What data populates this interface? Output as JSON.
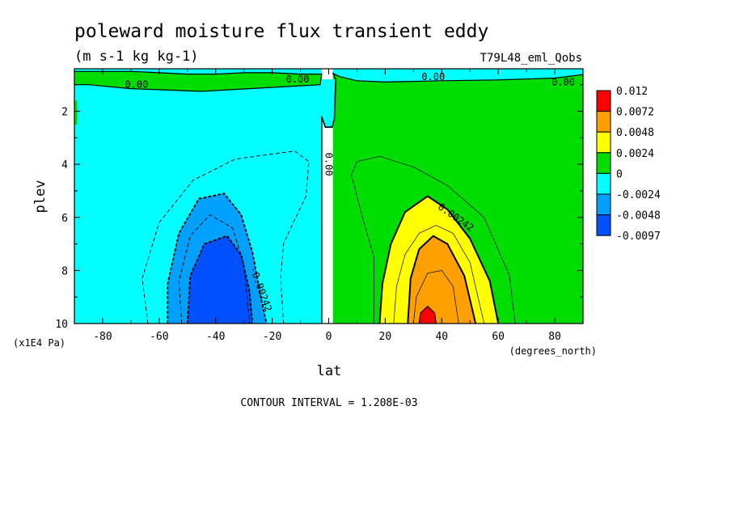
{
  "chart_data": {
    "type": "heatmap",
    "title": "poleward moisture flux transient eddy",
    "subtitle": "(m s-1 kg kg-1)",
    "dataset_label": "T79L48_eml_Qobs",
    "xlabel": "lat",
    "xunits": "(degrees_north)",
    "ylabel": "plev",
    "yunits": "(x1E4 Pa)",
    "xlim": [
      -90,
      90
    ],
    "ylim": [
      0.4,
      10
    ],
    "y_inverted": true,
    "x_ticks": [
      -80,
      -60,
      -40,
      -20,
      0,
      20,
      40,
      60,
      80
    ],
    "y_ticks": [
      2,
      4,
      6,
      8,
      10
    ],
    "x_tick_labels": [
      "-80",
      "-60",
      "-40",
      "-20",
      "0",
      "20",
      "40",
      "60",
      "80"
    ],
    "y_tick_labels": [
      "2",
      "4",
      "6",
      "8",
      "10"
    ],
    "contour_labels": [
      {
        "text": "0.00",
        "lat": -68,
        "plev": 1.0
      },
      {
        "text": "0.00",
        "lat": -11,
        "plev": 0.8
      },
      {
        "text": "0.00",
        "lat": 37,
        "plev": 0.7
      },
      {
        "text": "0.00",
        "lat": 83,
        "plev": 0.9
      },
      {
        "text": "0.00",
        "lat": 0,
        "plev": 4.0
      },
      {
        "text": "0.00242",
        "lat": 45,
        "plev": 6.0
      },
      {
        "text": "-0.00242",
        "lat": -24,
        "plev": 8.7
      }
    ],
    "colorbar": {
      "levels": [
        "0.012",
        "0.0072",
        "0.0048",
        "0.0024",
        "0",
        "-0.0024",
        "-0.0048",
        "-0.0097"
      ],
      "colors": [
        "#ff0000",
        "#ffa000",
        "#ffff00",
        "#00dd00",
        "#00ffff",
        "#00a0ff",
        "#0050ff"
      ]
    },
    "contour_interval_label": "CONTOUR INTERVAL = 1.208E-03",
    "regions": [
      {
        "color": "#00ffff",
        "points": [
          [
            -90,
            0.4
          ],
          [
            -2.5,
            0.4
          ],
          [
            -2.5,
            10
          ],
          [
            -90,
            10
          ]
        ]
      },
      {
        "color": "#00dd00",
        "points": [
          [
            1.5,
            0.4
          ],
          [
            90,
            0.4
          ],
          [
            90,
            10
          ],
          [
            1.5,
            10
          ]
        ]
      },
      {
        "color": "#00dd00",
        "points": [
          [
            -90,
            0.5
          ],
          [
            -70,
            0.5
          ],
          [
            -60,
            0.55
          ],
          [
            -50,
            0.6
          ],
          [
            -40,
            0.6
          ],
          [
            -30,
            0.55
          ],
          [
            -20,
            0.55
          ],
          [
            -10,
            0.6
          ],
          [
            -2.5,
            0.6
          ],
          [
            -3,
            1.0
          ],
          [
            -45,
            1.25
          ],
          [
            -70,
            1.15
          ],
          [
            -85,
            1.0
          ],
          [
            -90,
            1.0
          ]
        ]
      },
      {
        "color": "#00dd00",
        "points": [
          [
            -90,
            1.6
          ],
          [
            -89,
            1.6
          ],
          [
            -89,
            2.5
          ],
          [
            -90,
            2.5
          ]
        ]
      },
      {
        "color": "#00ffff",
        "points": [
          [
            1.5,
            0.4
          ],
          [
            90,
            0.4
          ],
          [
            90,
            0.62
          ],
          [
            80,
            0.75
          ],
          [
            60,
            0.82
          ],
          [
            40,
            0.85
          ],
          [
            20,
            0.9
          ],
          [
            10,
            0.85
          ],
          [
            4,
            0.7
          ],
          [
            2,
            0.6
          ],
          [
            1.5,
            0.55
          ]
        ]
      },
      {
        "color": "#00ffff",
        "points": [
          [
            -2.5,
            0.8
          ],
          [
            2.5,
            0.8
          ],
          [
            2,
            2.3
          ],
          [
            1.2,
            2.6
          ],
          [
            -1.2,
            2.6
          ],
          [
            -2.5,
            2.2
          ]
        ]
      },
      {
        "color": "#ffff00",
        "points": [
          [
            18,
            10
          ],
          [
            19,
            8.5
          ],
          [
            22,
            7.0
          ],
          [
            27,
            5.8
          ],
          [
            35,
            5.2
          ],
          [
            42,
            5.7
          ],
          [
            50,
            6.8
          ],
          [
            57,
            8.4
          ],
          [
            60,
            10
          ]
        ]
      },
      {
        "color": "#ffa000",
        "points": [
          [
            28,
            10
          ],
          [
            29,
            8.3
          ],
          [
            32,
            7.2
          ],
          [
            37,
            6.7
          ],
          [
            42,
            7.0
          ],
          [
            48,
            8.2
          ],
          [
            52,
            10
          ]
        ]
      },
      {
        "color": "#ff0000",
        "points": [
          [
            32,
            10
          ],
          [
            32.5,
            9.6
          ],
          [
            35,
            9.35
          ],
          [
            37.5,
            9.6
          ],
          [
            38,
            10
          ]
        ]
      },
      {
        "color": "#00a0ff",
        "points": [
          [
            -57,
            10
          ],
          [
            -57,
            8.5
          ],
          [
            -53,
            6.6
          ],
          [
            -46,
            5.3
          ],
          [
            -37,
            5.1
          ],
          [
            -31,
            5.9
          ],
          [
            -27,
            7.3
          ],
          [
            -24,
            9.0
          ],
          [
            -22,
            10
          ]
        ]
      },
      {
        "color": "#0050ff",
        "points": [
          [
            -50,
            10
          ],
          [
            -49,
            8.2
          ],
          [
            -44,
            7.0
          ],
          [
            -36,
            6.7
          ],
          [
            -31,
            7.4
          ],
          [
            -28,
            8.8
          ],
          [
            -27,
            10
          ]
        ]
      }
    ],
    "contour_lines": [
      {
        "style": "solid",
        "width": 1.6,
        "points": [
          [
            -2.5,
            10
          ],
          [
            -2.5,
            2.2
          ],
          [
            -1.2,
            2.6
          ],
          [
            1.2,
            2.6
          ],
          [
            2,
            2.3
          ],
          [
            2.5,
            0.8
          ],
          [
            1.5,
            0.55
          ]
        ]
      },
      {
        "style": "solid",
        "width": 1.2,
        "points": [
          [
            -90,
            1.0
          ],
          [
            -85,
            1.0
          ],
          [
            -70,
            1.15
          ],
          [
            -45,
            1.25
          ],
          [
            -3,
            1.0
          ],
          [
            -2.5,
            0.6
          ],
          [
            -10,
            0.6
          ],
          [
            -20,
            0.55
          ],
          [
            -30,
            0.55
          ],
          [
            -40,
            0.6
          ],
          [
            -50,
            0.6
          ],
          [
            -60,
            0.55
          ],
          [
            -70,
            0.5
          ],
          [
            -90,
            0.5
          ]
        ]
      },
      {
        "style": "solid",
        "width": 1.2,
        "points": [
          [
            90,
            0.62
          ],
          [
            80,
            0.75
          ],
          [
            60,
            0.82
          ],
          [
            40,
            0.85
          ],
          [
            20,
            0.9
          ],
          [
            10,
            0.85
          ],
          [
            4,
            0.7
          ],
          [
            2,
            0.6
          ]
        ]
      },
      {
        "style": "solid",
        "width": 0.7,
        "points": [
          [
            16,
            10
          ],
          [
            16,
            7.5
          ],
          [
            12,
            6.0
          ],
          [
            8,
            4.4
          ],
          [
            10,
            3.9
          ],
          [
            18,
            3.7
          ],
          [
            30,
            4.1
          ],
          [
            42,
            4.8
          ],
          [
            55,
            6.0
          ],
          [
            64,
            8.2
          ],
          [
            66,
            10
          ]
        ]
      },
      {
        "style": "solid",
        "width": 2.0,
        "points": [
          [
            18,
            10
          ],
          [
            19,
            8.5
          ],
          [
            22,
            7.0
          ],
          [
            27,
            5.8
          ],
          [
            35,
            5.2
          ],
          [
            42,
            5.7
          ],
          [
            50,
            6.8
          ],
          [
            57,
            8.4
          ],
          [
            60,
            10
          ]
        ]
      },
      {
        "style": "solid",
        "width": 0.7,
        "points": [
          [
            23,
            10
          ],
          [
            24,
            8.6
          ],
          [
            27,
            7.4
          ],
          [
            32,
            6.6
          ],
          [
            38,
            6.3
          ],
          [
            44,
            6.6
          ],
          [
            50,
            7.7
          ],
          [
            55,
            10
          ]
        ]
      },
      {
        "style": "solid",
        "width": 2.0,
        "points": [
          [
            28,
            10
          ],
          [
            29,
            8.3
          ],
          [
            32,
            7.2
          ],
          [
            37,
            6.7
          ],
          [
            42,
            7.0
          ],
          [
            48,
            8.2
          ],
          [
            52,
            10
          ]
        ]
      },
      {
        "style": "solid",
        "width": 0.7,
        "points": [
          [
            30,
            10
          ],
          [
            31,
            9.0
          ],
          [
            35,
            8.1
          ],
          [
            40,
            8.0
          ],
          [
            44,
            8.6
          ],
          [
            46,
            10
          ]
        ]
      },
      {
        "style": "solid",
        "width": 1.2,
        "points": [
          [
            32,
            10
          ],
          [
            32.5,
            9.6
          ],
          [
            35,
            9.35
          ],
          [
            37.5,
            9.6
          ],
          [
            38,
            10
          ]
        ]
      },
      {
        "style": "dashed",
        "width": 0.9,
        "points": [
          [
            -64,
            10
          ],
          [
            -66,
            8.3
          ],
          [
            -60,
            6.2
          ],
          [
            -48,
            4.6
          ],
          [
            -33,
            3.8
          ],
          [
            -12,
            3.5
          ],
          [
            -7,
            3.9
          ],
          [
            -8,
            5.2
          ],
          [
            -13,
            6.3
          ],
          [
            -16,
            7.0
          ],
          [
            -17,
            8.3
          ],
          [
            -16,
            10
          ]
        ]
      },
      {
        "style": "dashed",
        "width": 1.8,
        "points": [
          [
            -57,
            10
          ],
          [
            -57,
            8.5
          ],
          [
            -53,
            6.6
          ],
          [
            -46,
            5.3
          ],
          [
            -37,
            5.1
          ],
          [
            -31,
            5.9
          ],
          [
            -27,
            7.3
          ],
          [
            -24,
            9.0
          ],
          [
            -22,
            10
          ]
        ]
      },
      {
        "style": "dashed",
        "width": 0.9,
        "points": [
          [
            -52,
            10
          ],
          [
            -53,
            8.4
          ],
          [
            -49,
            6.7
          ],
          [
            -42,
            5.9
          ],
          [
            -34,
            6.4
          ],
          [
            -30,
            7.8
          ],
          [
            -28,
            10
          ]
        ]
      },
      {
        "style": "dashed",
        "width": 1.8,
        "points": [
          [
            -50,
            10
          ],
          [
            -49,
            8.2
          ],
          [
            -44,
            7.0
          ],
          [
            -36,
            6.7
          ],
          [
            -31,
            7.4
          ],
          [
            -28,
            8.8
          ],
          [
            -27,
            10
          ]
        ]
      }
    ]
  }
}
